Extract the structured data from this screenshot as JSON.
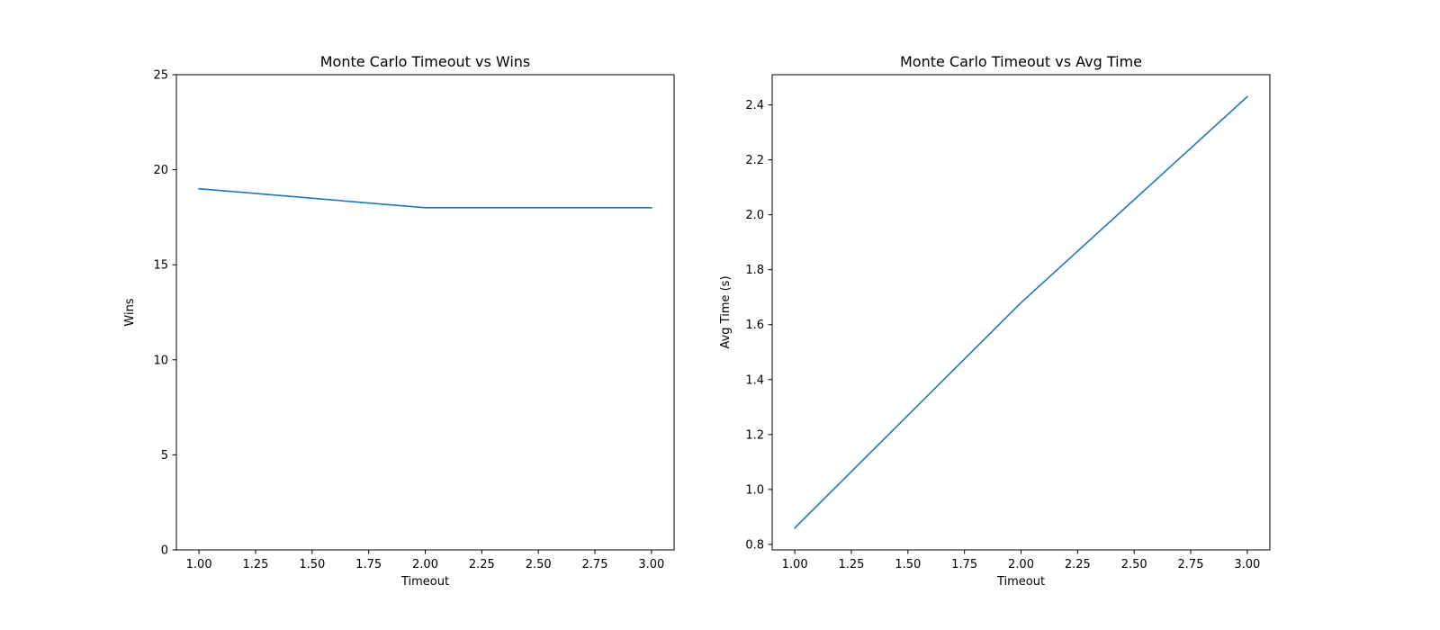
{
  "chart_data": [
    {
      "type": "line",
      "title": "Monte Carlo Timeout vs Wins",
      "xlabel": "Timeout",
      "ylabel": "Wins",
      "x": [
        1.0,
        2.0,
        3.0
      ],
      "series": [
        {
          "values": [
            19,
            18,
            18
          ],
          "color": "#1f77b4"
        }
      ],
      "xlim": [
        0.9,
        3.1
      ],
      "ylim": [
        0,
        25
      ],
      "xticks": [
        1.0,
        1.25,
        1.5,
        1.75,
        2.0,
        2.25,
        2.5,
        2.75,
        3.0
      ],
      "xtick_labels": [
        "1.00",
        "1.25",
        "1.50",
        "1.75",
        "2.00",
        "2.25",
        "2.50",
        "2.75",
        "3.00"
      ],
      "yticks": [
        0,
        5,
        10,
        15,
        20,
        25
      ],
      "ytick_labels": [
        "0",
        "5",
        "10",
        "15",
        "20",
        "25"
      ],
      "grid": false,
      "legend": false
    },
    {
      "type": "line",
      "title": "Monte Carlo Timeout vs Avg Time",
      "xlabel": "Timeout",
      "ylabel": "Avg Time (s)",
      "x": [
        1.0,
        2.0,
        3.0
      ],
      "series": [
        {
          "values": [
            0.86,
            1.68,
            2.43
          ],
          "color": "#1f77b4"
        }
      ],
      "xlim": [
        0.9,
        3.1
      ],
      "ylim": [
        0.78,
        2.51
      ],
      "xticks": [
        1.0,
        1.25,
        1.5,
        1.75,
        2.0,
        2.25,
        2.5,
        2.75,
        3.0
      ],
      "xtick_labels": [
        "1.00",
        "1.25",
        "1.50",
        "1.75",
        "2.00",
        "2.25",
        "2.50",
        "2.75",
        "3.00"
      ],
      "yticks": [
        0.8,
        1.0,
        1.2,
        1.4,
        1.6,
        1.8,
        2.0,
        2.2,
        2.4
      ],
      "ytick_labels": [
        "0.8",
        "1.0",
        "1.2",
        "1.4",
        "1.6",
        "1.8",
        "2.0",
        "2.2",
        "2.4"
      ],
      "grid": false,
      "legend": false
    }
  ]
}
